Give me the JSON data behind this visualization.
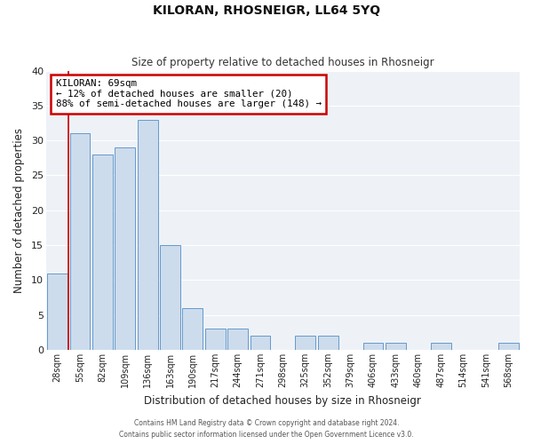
{
  "title": "KILORAN, RHOSNEIGR, LL64 5YQ",
  "subtitle": "Size of property relative to detached houses in Rhosneigr",
  "xlabel": "Distribution of detached houses by size in Rhosneigr",
  "ylabel": "Number of detached properties",
  "bar_labels": [
    "28sqm",
    "55sqm",
    "82sqm",
    "109sqm",
    "136sqm",
    "163sqm",
    "190sqm",
    "217sqm",
    "244sqm",
    "271sqm",
    "298sqm",
    "325sqm",
    "352sqm",
    "379sqm",
    "406sqm",
    "433sqm",
    "460sqm",
    "487sqm",
    "514sqm",
    "541sqm",
    "568sqm"
  ],
  "bar_values": [
    11,
    31,
    28,
    29,
    33,
    15,
    6,
    3,
    3,
    2,
    0,
    2,
    2,
    0,
    1,
    1,
    0,
    1,
    0,
    0,
    1
  ],
  "bar_color": "#cddcec",
  "bar_edge_color": "#6699cc",
  "ylim": [
    0,
    40
  ],
  "yticks": [
    0,
    5,
    10,
    15,
    20,
    25,
    30,
    35,
    40
  ],
  "vline_x": 0.5,
  "vline_color": "#cc0000",
  "annotation_title": "KILORAN: 69sqm",
  "annotation_line1": "← 12% of detached houses are smaller (20)",
  "annotation_line2": "88% of semi-detached houses are larger (148) →",
  "annotation_box_color": "#cc0000",
  "background_color": "#eef2f7",
  "grid_color": "#ffffff",
  "footer_line1": "Contains HM Land Registry data © Crown copyright and database right 2024.",
  "footer_line2": "Contains public sector information licensed under the Open Government Licence v3.0."
}
